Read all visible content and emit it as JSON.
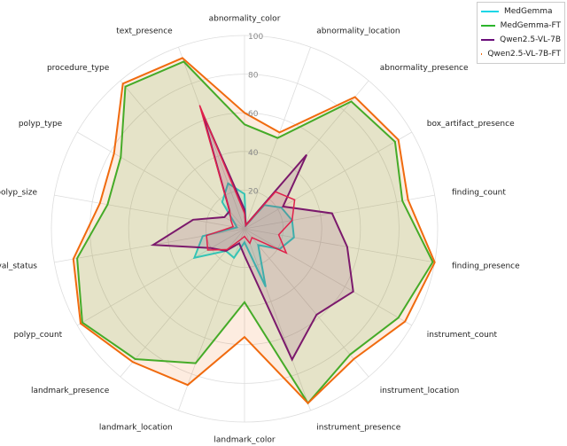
{
  "chart_data": {
    "type": "radar",
    "title": "",
    "rlim": [
      0,
      100
    ],
    "rticks": [
      20,
      40,
      60,
      80,
      100
    ],
    "grid": true,
    "legend_position": "top-right",
    "categories": [
      "abnormality_color",
      "abnormality_location",
      "abnormality_presence",
      "box_artifact_presence",
      "finding_count",
      "finding_presence",
      "instrument_count",
      "instrument_location",
      "instrument_presence",
      "landmark_color",
      "landmark_location",
      "landmark_presence",
      "polyp_count",
      "polyp_removal_status",
      "polyp_size",
      "polyp_type",
      "procedure_type",
      "text_presence"
    ],
    "series": [
      {
        "name": "MedGemma",
        "color": "#17d6e6",
        "values": [
          18,
          2,
          16,
          22,
          25,
          26,
          21,
          11,
          32,
          7,
          16,
          15,
          30,
          22,
          4,
          6,
          18,
          25
        ]
      },
      {
        "name": "MedGemma-FT",
        "color": "#2cb52c",
        "values": [
          54,
          50,
          86,
          90,
          83,
          99,
          92,
          85,
          96,
          38,
          74,
          88,
          97,
          88,
          72,
          74,
          96,
          92
        ]
      },
      {
        "name": "Qwen2.5-VL-7B",
        "color": "#6a0d7a",
        "values": [
          10,
          2,
          50,
          23,
          46,
          54,
          65,
          58,
          72,
          14,
          8,
          15,
          20,
          48,
          27,
          12,
          12,
          64
        ]
      },
      {
        "name": "Qwen2.5-VL-7B-FT",
        "color": "#f06a0e",
        "values": [
          60,
          53,
          89,
          92,
          86,
          100,
          96,
          88,
          96,
          56,
          86,
          90,
          98,
          90,
          76,
          78,
          98,
          94
        ]
      }
    ],
    "extra_line": {
      "color": "#e0204a",
      "values": [
        8,
        2,
        25,
        30,
        25,
        18,
        25,
        6,
        8,
        4,
        6,
        14,
        22,
        20,
        6,
        8,
        12,
        68
      ]
    }
  }
}
